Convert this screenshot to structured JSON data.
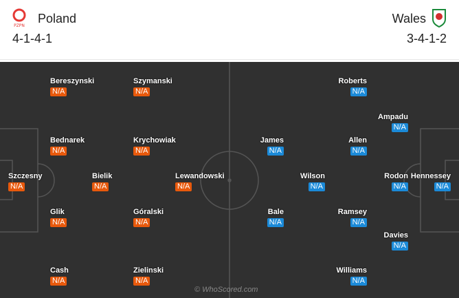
{
  "home": {
    "name": "Poland",
    "formation": "4-1-4-1",
    "color": "#e8590c",
    "crest": "PZPN",
    "players": [
      {
        "name": "Szczesny",
        "rating": "N/A"
      },
      {
        "name": "Bereszynski",
        "rating": "N/A"
      },
      {
        "name": "Bednarek",
        "rating": "N/A"
      },
      {
        "name": "Glik",
        "rating": "N/A"
      },
      {
        "name": "Cash",
        "rating": "N/A"
      },
      {
        "name": "Bielik",
        "rating": "N/A"
      },
      {
        "name": "Szymanski",
        "rating": "N/A"
      },
      {
        "name": "Krychowiak",
        "rating": "N/A"
      },
      {
        "name": "Góralski",
        "rating": "N/A"
      },
      {
        "name": "Zielinski",
        "rating": "N/A"
      },
      {
        "name": "Lewandowski",
        "rating": "N/A"
      }
    ]
  },
  "away": {
    "name": "Wales",
    "formation": "3-4-1-2",
    "color": "#1b8ad8",
    "players": [
      {
        "name": "Hennessey",
        "rating": "N/A"
      },
      {
        "name": "Rodon",
        "rating": "N/A"
      },
      {
        "name": "Ampadu",
        "rating": "N/A"
      },
      {
        "name": "Davies",
        "rating": "N/A"
      },
      {
        "name": "Roberts",
        "rating": "N/A"
      },
      {
        "name": "Allen",
        "rating": "N/A"
      },
      {
        "name": "Ramsey",
        "rating": "N/A"
      },
      {
        "name": "Williams",
        "rating": "N/A"
      },
      {
        "name": "Wilson",
        "rating": "N/A"
      },
      {
        "name": "James",
        "rating": "N/A"
      },
      {
        "name": "Bale",
        "rating": "N/A"
      }
    ]
  },
  "watermark": "© WhoScored.com"
}
